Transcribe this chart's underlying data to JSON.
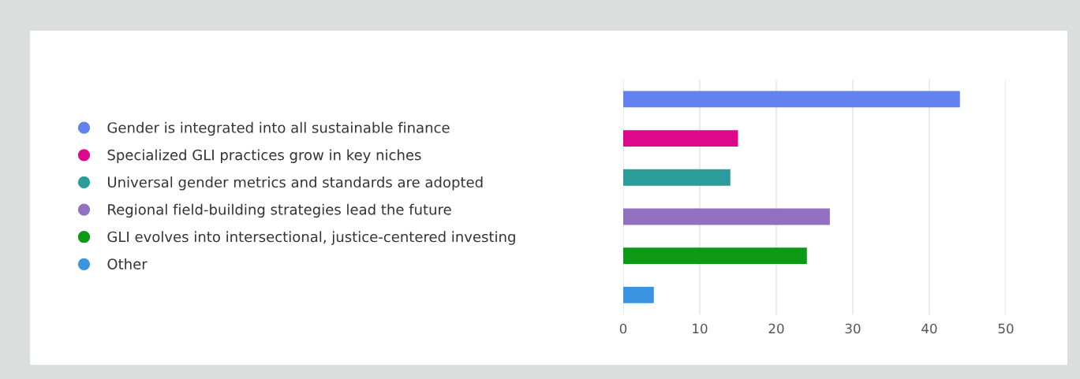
{
  "chart_data": {
    "type": "bar",
    "orientation": "horizontal",
    "categories": [
      null,
      null,
      null,
      null,
      null,
      null
    ],
    "series": [
      {
        "name": "Gender is integrated into all sustainable finance",
        "color": "#6382f0",
        "values": [
          44,
          null,
          null,
          null,
          null,
          null
        ]
      },
      {
        "name": "Specialized GLI practices grow in key niches",
        "color": "#e0088a",
        "values": [
          null,
          15,
          null,
          null,
          null,
          null
        ]
      },
      {
        "name": "Universal gender metrics and standards are adopted",
        "color": "#2a9d9b",
        "values": [
          null,
          null,
          14,
          null,
          null,
          null
        ]
      },
      {
        "name": "Regional field-building strategies lead the future",
        "color": "#9271c1",
        "values": [
          null,
          null,
          null,
          27,
          null,
          null
        ]
      },
      {
        "name": "GLI evolves into intersectional, justice-centered investing",
        "color": "#0c9a14",
        "values": [
          null,
          null,
          null,
          null,
          24,
          null
        ]
      },
      {
        "name": "Other",
        "color": "#3a94e0",
        "values": [
          null,
          null,
          null,
          null,
          null,
          4
        ]
      }
    ],
    "xlim": [
      0,
      50
    ],
    "xticks": [
      0,
      10,
      20,
      30,
      40,
      50
    ],
    "grid": "x",
    "legend": "left",
    "tick_labels": "x"
  }
}
